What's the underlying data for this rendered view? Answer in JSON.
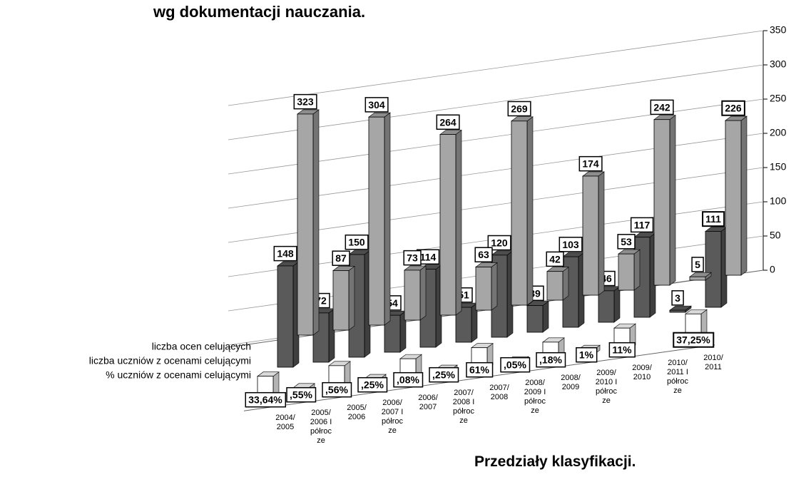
{
  "chart_data": {
    "type": "bar3d",
    "title": "wg dokumentacji nauczania.",
    "x_label": "Przedziały klasyfikacji.",
    "categories": [
      "2004/\n2005",
      "2005/\n2006 I\npółroc\nze",
      "2005/\n2006",
      "2006/\n2007 I\npółroc\nze",
      "2006/\n2007",
      "2007/\n2008 I\npółroc\nze",
      "2007/\n2008",
      "2008/\n2009 I\npółroc\nze",
      "2008/\n2009",
      "2009/\n2010 I\npółroc\nze",
      "2009/\n2010",
      "2010/\n2011 I\npółroc\nze",
      "2010/\n2011"
    ],
    "series": [
      {
        "name": "liczba ocen celujących",
        "color": "#a6a6a6",
        "values": [
          323,
          87,
          304,
          73,
          264,
          63,
          269,
          42,
          174,
          53,
          242,
          5,
          226
        ]
      },
      {
        "name": "liczba uczniów z ocenami celującymi",
        "color": "#5a5a5a",
        "values": [
          148,
          72,
          150,
          54,
          114,
          51,
          120,
          39,
          103,
          46,
          117,
          3,
          111
        ]
      },
      {
        "name": "% uczniów z ocenami celującymi",
        "color": "#ffffff",
        "values": [
          33.64,
          9.55,
          34.56,
          8.25,
          30.08,
          7.25,
          31.61,
          5.05,
          25.18,
          7.1,
          31.11,
          null,
          37.25
        ],
        "value_labels": [
          "33,64%",
          ",55%",
          ",56%",
          ",25%",
          ",08%",
          ",25%",
          "61%",
          ",05%",
          ",18%",
          "1%",
          "11%",
          null,
          "37,25%"
        ]
      }
    ],
    "ylim": [
      0,
      350
    ],
    "yticks": [
      0,
      50,
      100,
      150,
      200,
      250,
      300,
      350
    ],
    "grid": true
  }
}
